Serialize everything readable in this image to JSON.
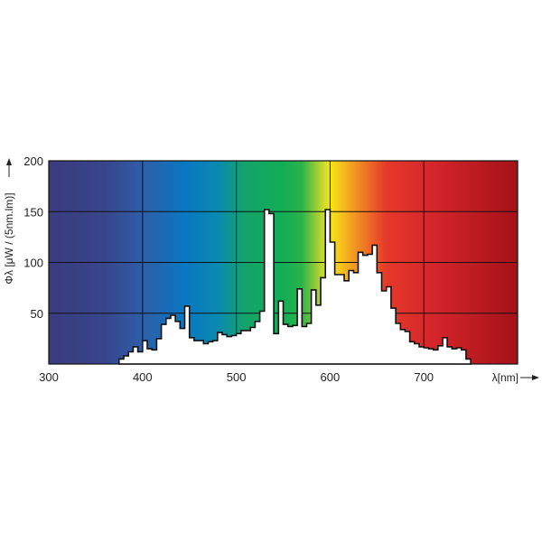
{
  "chart_data": {
    "type": "area",
    "title": "",
    "xlabel": "λ[nm]",
    "ylabel": "Φλ [μW / (5nm.lm)]",
    "xlim": [
      300,
      800
    ],
    "ylim": [
      0,
      200
    ],
    "x_ticks": [
      300,
      400,
      500,
      600,
      700
    ],
    "y_ticks": [
      50,
      100,
      150,
      200
    ],
    "grid": true,
    "background": "visible spectrum gradient",
    "series": [
      {
        "x": [
          375,
          380,
          385,
          390,
          395,
          400,
          405,
          410,
          415,
          420,
          425,
          430,
          435,
          440,
          445,
          450,
          455,
          460,
          465,
          470,
          475,
          480,
          485,
          490,
          495,
          500,
          505,
          510,
          515,
          520,
          525,
          530,
          535,
          540,
          545,
          550,
          555,
          560,
          565,
          570,
          575,
          580,
          585,
          590,
          595,
          600,
          605,
          610,
          615,
          620,
          625,
          630,
          635,
          640,
          645,
          650,
          655,
          660,
          665,
          670,
          675,
          680,
          685,
          690,
          695,
          700,
          705,
          710,
          715,
          720,
          725,
          730,
          735,
          740,
          745
        ],
        "values": [
          5,
          8,
          12,
          17,
          12,
          23,
          15,
          14,
          25,
          39,
          45,
          48,
          42,
          35,
          57,
          26,
          23,
          23,
          20,
          22,
          23,
          31,
          29,
          27,
          28,
          30,
          33,
          33,
          36,
          42,
          52,
          152,
          148,
          30,
          62,
          39,
          37,
          38,
          74,
          37,
          40,
          73,
          58,
          85,
          152,
          120,
          88,
          88,
          82,
          92,
          90,
          110,
          107,
          108,
          117,
          90,
          72,
          76,
          55,
          40,
          34,
          32,
          22,
          20,
          17,
          16,
          15,
          14,
          18,
          26,
          17,
          15,
          16,
          14,
          5
        ]
      }
    ]
  },
  "spectrum_colors": [
    "#3b3b7e",
    "#35529a",
    "#0a74c0",
    "#13a070",
    "#11ae56",
    "#f2e41b",
    "#f4a020",
    "#e6352a",
    "#c9222a",
    "#a81418"
  ]
}
